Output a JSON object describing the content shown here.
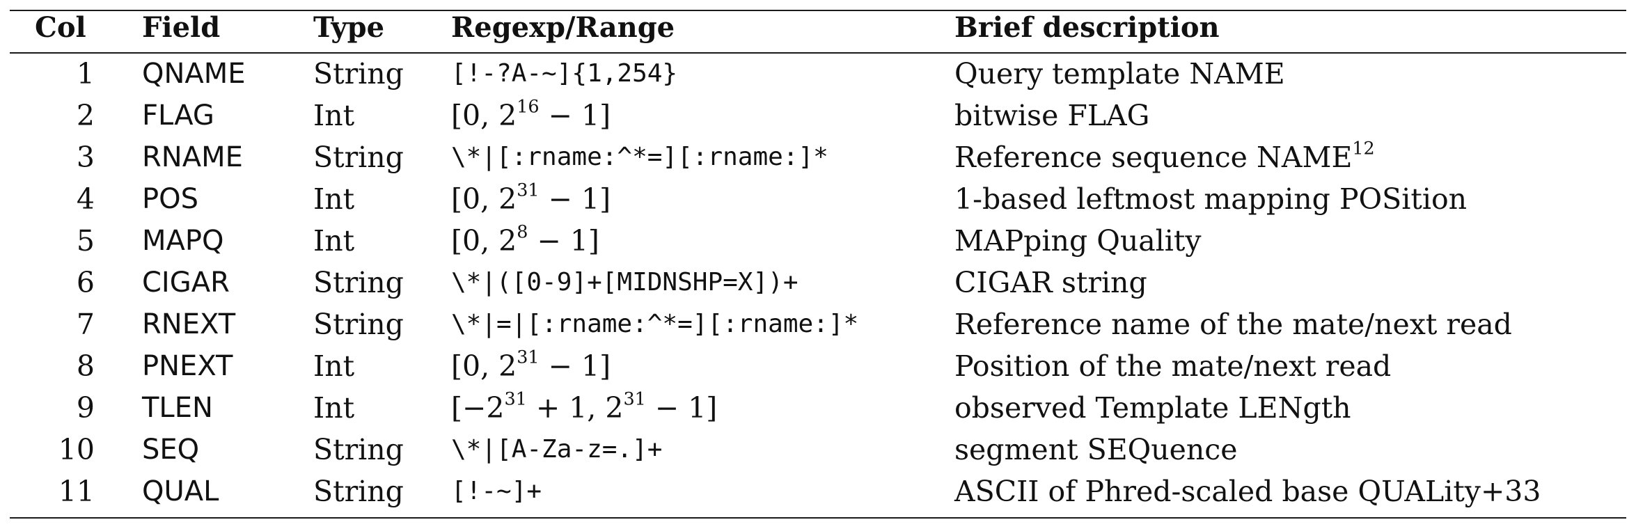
{
  "header": {
    "col": "Col",
    "field": "Field",
    "type": "Type",
    "regexp": "Regexp/Range",
    "description": "Brief description"
  },
  "rows": [
    {
      "col": "1",
      "field": "QNAME",
      "type": "String",
      "regexp": "[!-?A-~]{1,254}",
      "description": "Query template NAME"
    },
    {
      "col": "2",
      "field": "FLAG",
      "type": "Int",
      "regexp_pre": "[0, 2",
      "regexp_sup": "16",
      "regexp_post": " − 1]",
      "description": "bitwise FLAG"
    },
    {
      "col": "3",
      "field": "RNAME",
      "type": "String",
      "regexp": "\\*|[:rname:^*=][:rname:]*",
      "description_pre": "Reference sequence NAME",
      "description_sup": "12"
    },
    {
      "col": "4",
      "field": "POS",
      "type": "Int",
      "regexp_pre": "[0, 2",
      "regexp_sup": "31",
      "regexp_post": " − 1]",
      "description": "1-based leftmost mapping POSition"
    },
    {
      "col": "5",
      "field": "MAPQ",
      "type": "Int",
      "regexp_pre": "[0, 2",
      "regexp_sup": "8",
      "regexp_post": " − 1]",
      "description": "MAPping Quality"
    },
    {
      "col": "6",
      "field": "CIGAR",
      "type": "String",
      "regexp": "\\*|([0-9]+[MIDNSHP=X])+",
      "description": "CIGAR string"
    },
    {
      "col": "7",
      "field": "RNEXT",
      "type": "String",
      "regexp": "\\*|=|[:rname:^*=][:rname:]*",
      "description": "Reference name of the mate/next read"
    },
    {
      "col": "8",
      "field": "PNEXT",
      "type": "Int",
      "regexp_pre": "[0, 2",
      "regexp_sup": "31",
      "regexp_post": " − 1]",
      "description": "Position of the mate/next read"
    },
    {
      "col": "9",
      "field": "TLEN",
      "type": "Int",
      "regexp_pre": "[−2",
      "regexp_sup": "31",
      "regexp_mid": " + 1, 2",
      "regexp_sup2": "31",
      "regexp_post": " − 1]",
      "description": "observed Template LENgth"
    },
    {
      "col": "10",
      "field": "SEQ",
      "type": "String",
      "regexp": "\\*|[A-Za-z=.]+",
      "description": "segment SEQuence"
    },
    {
      "col": "11",
      "field": "QUAL",
      "type": "String",
      "regexp": "[!-~]+",
      "description": "ASCII of Phred-scaled base QUALity+33"
    }
  ]
}
